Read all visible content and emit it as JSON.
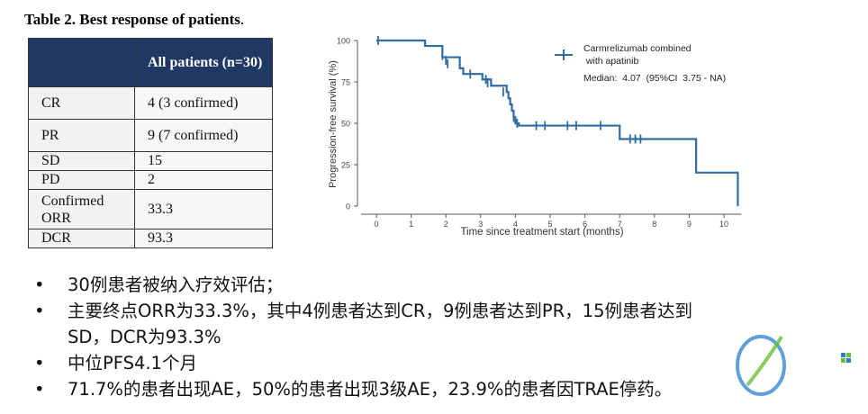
{
  "table": {
    "title_main": "Table 2. Best response of patients",
    "title_dot": ".",
    "header": "All patients (n=30)",
    "rows": [
      {
        "label": "CR",
        "value": "4  (3 confirmed)"
      },
      {
        "label": "PR",
        "value": "9  (7 confirmed)"
      },
      {
        "label": "SD",
        "value": "15"
      },
      {
        "label": "PD",
        "value": "2"
      },
      {
        "label": "Confirmed ORR",
        "value": "33.3"
      },
      {
        "label": "DCR",
        "value": "93.3"
      }
    ]
  },
  "chart_data": {
    "type": "line",
    "title": "",
    "xlabel": "Time since treatment start (months)",
    "ylabel": "Progression-free survival (%)",
    "xlim": [
      0,
      10.5
    ],
    "ylim": [
      0,
      100
    ],
    "xticks": [
      0,
      1,
      2,
      3,
      4,
      5,
      6,
      7,
      8,
      9,
      10
    ],
    "yticks": [
      0,
      25,
      50,
      75,
      100
    ],
    "series": [
      {
        "name": "Carmrelizumab combined with apatinib",
        "color": "#2e6da4",
        "steps": [
          [
            0,
            100
          ],
          [
            1.4,
            96.7
          ],
          [
            1.9,
            89.9
          ],
          [
            2.4,
            83.2
          ],
          [
            2.5,
            79.8
          ],
          [
            3.05,
            76.5
          ],
          [
            3.3,
            72.7
          ],
          [
            3.75,
            68.9
          ],
          [
            3.8,
            65.1
          ],
          [
            3.85,
            61.4
          ],
          [
            3.9,
            57.6
          ],
          [
            3.95,
            53.8
          ],
          [
            4.0,
            50.0
          ],
          [
            4.1,
            48.6
          ],
          [
            7.0,
            40.5
          ],
          [
            9.2,
            20.2
          ],
          [
            10.4,
            0
          ]
        ],
        "censored": [
          [
            0.05,
            100
          ],
          [
            1.9,
            91
          ],
          [
            2.0,
            88
          ],
          [
            2.05,
            86
          ],
          [
            2.7,
            79.8
          ],
          [
            3.15,
            76.5
          ],
          [
            3.2,
            74.5
          ],
          [
            3.65,
            68.9
          ],
          [
            3.95,
            53.5
          ],
          [
            4.05,
            50
          ],
          [
            4.6,
            48.6
          ],
          [
            4.85,
            48.6
          ],
          [
            5.5,
            48.6
          ],
          [
            5.75,
            48.6
          ],
          [
            6.45,
            48.6
          ],
          [
            7.3,
            40.5
          ],
          [
            7.45,
            40.5
          ],
          [
            7.6,
            40.5
          ]
        ]
      }
    ],
    "legend": {
      "position": "top-right",
      "label_line1": "Carmrelizumab combined",
      "label_line2": " with apatinib",
      "median": "Median:  4.07  (95%CI  3.75 - NA)"
    },
    "grid": false
  },
  "bullets": [
    "30例患者被纳入疗效评估；",
    "主要终点ORR为33.3%，其中4例患者达到CR，9例患者达到PR，15例患者达到",
    "SD，DCR为93.3%",
    "中位PFS4.1个月",
    "71.7%的患者出现AE，50%的患者出现3级AE，23.9%的患者因TRAE停药。"
  ],
  "colors": {
    "table_header": "#1f3864",
    "curve": "#2e6da4"
  }
}
